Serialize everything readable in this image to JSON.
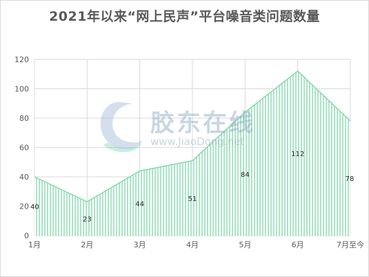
{
  "title": "2021年以来“网上民声”平台噪音类问题数量",
  "watermark": {
    "brand": "胶东在线",
    "url": "www.JiaoDong.net"
  },
  "colors": {
    "fill_stripe": "#a9e6c6",
    "fill_stripe_bg": "#ffffff",
    "outline": "#82d9aa",
    "grid": "#d9d9d9",
    "axis": "#bfbfbf"
  },
  "chart_data": {
    "type": "area",
    "title": "2021年以来“网上民声”平台噪音类问题数量",
    "categories": [
      "1月",
      "2月",
      "3月",
      "4月",
      "5月",
      "6月",
      "7月至今"
    ],
    "series": [
      {
        "values": [
          40,
          23,
          44,
          51,
          84,
          112,
          78
        ]
      }
    ],
    "ylim": [
      0,
      120
    ],
    "yticks": [
      0,
      20,
      40,
      60,
      80,
      100,
      120
    ],
    "xlabel": "",
    "ylabel": "",
    "grid": true,
    "data_labels": [
      "40",
      "23",
      "44",
      "51",
      "84",
      "112",
      "78"
    ]
  }
}
